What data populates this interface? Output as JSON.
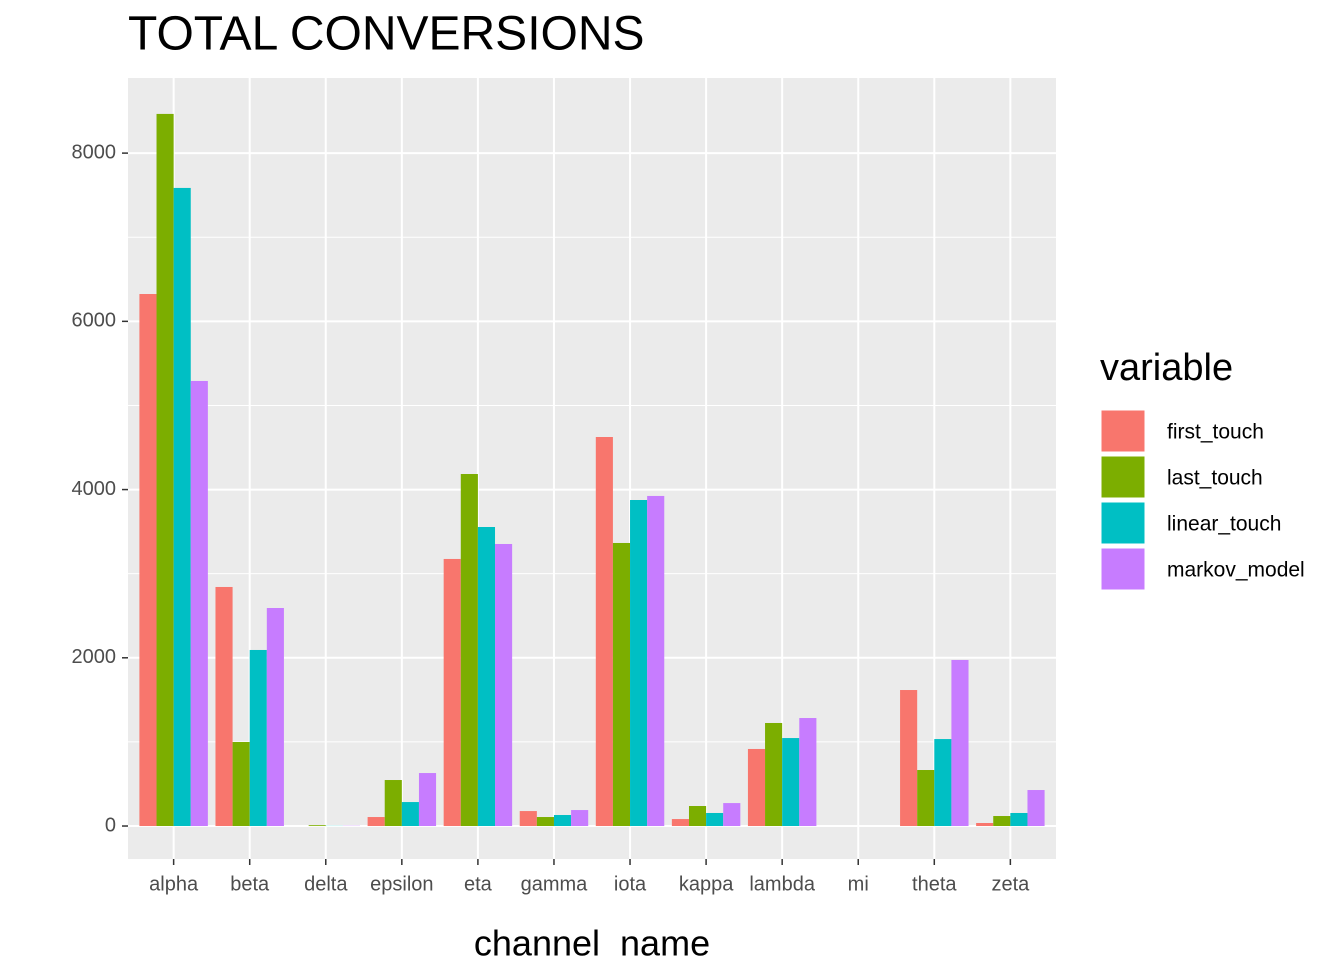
{
  "chart_data": {
    "type": "bar",
    "title": "TOTAL CONVERSIONS",
    "x_label": "channel_name",
    "legend_title": "variable",
    "categories": [
      "alpha",
      "beta",
      "delta",
      "epsilon",
      "eta",
      "gamma",
      "iota",
      "kappa",
      "lambda",
      "mi",
      "theta",
      "zeta"
    ],
    "series": [
      {
        "name": "first_touch",
        "color": "#F8766D",
        "values": [
          6325,
          2842,
          0,
          107,
          3175,
          178,
          4625,
          83,
          916,
          0,
          1617,
          36
        ]
      },
      {
        "name": "last_touch",
        "color": "#7CAE00",
        "values": [
          8466,
          999,
          10,
          547,
          4185,
          107,
          3365,
          238,
          1225,
          0,
          666,
          119
        ]
      },
      {
        "name": "linear_touch",
        "color": "#00BFC4",
        "values": [
          7586,
          2093,
          2,
          285,
          3555,
          131,
          3876,
          155,
          1046,
          0,
          1034,
          155
        ]
      },
      {
        "name": "markov_model",
        "color": "#C77CFF",
        "values": [
          5291,
          2592,
          3,
          630,
          3353,
          190,
          3924,
          273,
          1284,
          0,
          1974,
          428
        ]
      }
    ],
    "ylim": [
      -392,
      8893
    ],
    "yticks": [
      0,
      2000,
      4000,
      6000,
      8000
    ],
    "grid": true,
    "legend": "right"
  }
}
